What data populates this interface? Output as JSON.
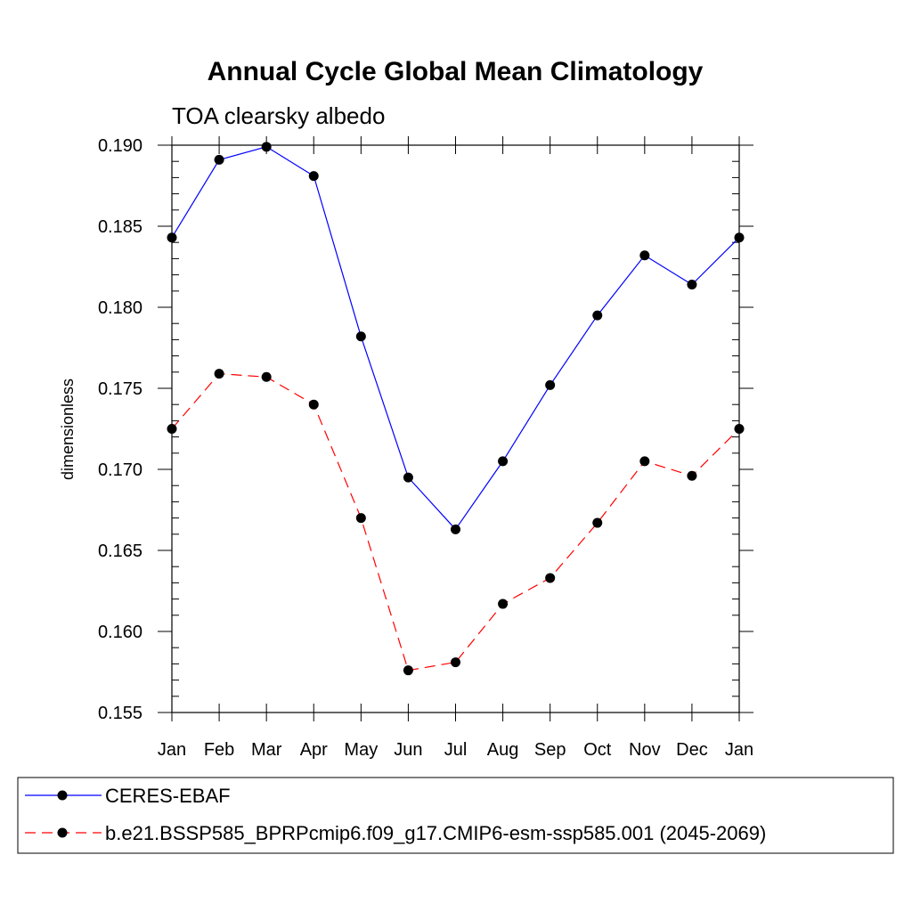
{
  "chart_data": {
    "type": "line",
    "title": "Annual Cycle Global Mean Climatology",
    "subtitle": "TOA clearsky albedo",
    "xlabel": "",
    "ylabel": "dimensionless",
    "categories": [
      "Jan",
      "Feb",
      "Mar",
      "Apr",
      "May",
      "Jun",
      "Jul",
      "Aug",
      "Sep",
      "Oct",
      "Nov",
      "Dec",
      "Jan"
    ],
    "yticks": [
      "0.155",
      "0.160",
      "0.165",
      "0.170",
      "0.175",
      "0.180",
      "0.185",
      "0.190"
    ],
    "ylim": [
      0.155,
      0.19
    ],
    "grid": false,
    "legend_position": "bottom",
    "series": [
      {
        "name": "CERES-EBAF",
        "color": "#0000ff",
        "style": "solid",
        "marker": "filled-circle",
        "values": [
          0.1843,
          0.1891,
          0.1899,
          0.1881,
          0.1782,
          0.1695,
          0.1663,
          0.1705,
          0.1752,
          0.1795,
          0.1832,
          0.1814,
          0.1843
        ]
      },
      {
        "name": "b.e21.BSSP585_BPRPcmip6.f09_g17.CMIP6-esm-ssp585.001 (2045-2069)",
        "color": "#ff0000",
        "style": "dashed",
        "marker": "filled-circle",
        "values": [
          0.1725,
          0.1759,
          0.1757,
          0.174,
          0.167,
          0.1576,
          0.1581,
          0.1617,
          0.1633,
          0.1667,
          0.1705,
          0.1696,
          0.1725
        ]
      }
    ]
  }
}
